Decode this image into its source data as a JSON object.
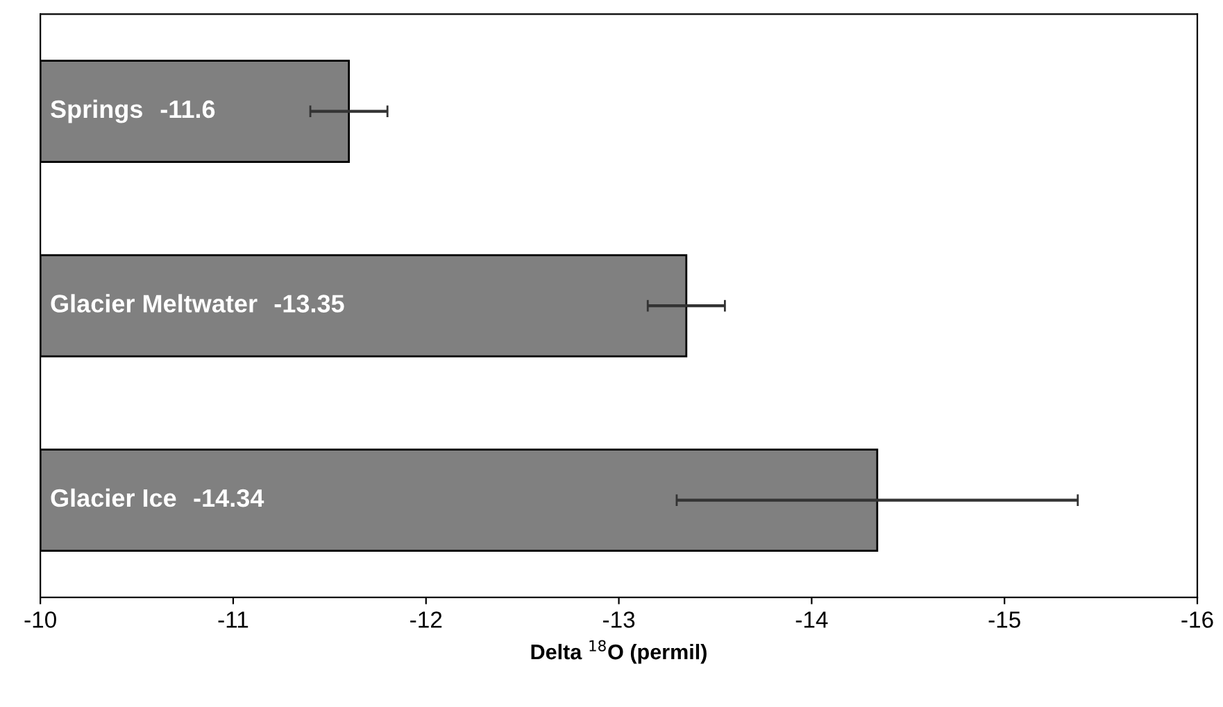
{
  "chart_data": {
    "type": "bar",
    "orientation": "horizontal",
    "xlabel": "Delta $^{18}$O (permil)",
    "categories": [
      "Springs",
      "Glacier Meltwater",
      "Glacier Ice"
    ],
    "values": [
      -11.6,
      -13.35,
      -14.34
    ],
    "errors": [
      0.2,
      0.2,
      1.04
    ],
    "color": "#808080",
    "data_labels": true,
    "xlim": [
      -10,
      -16
    ],
    "xticks": [
      -10,
      -11,
      -12,
      -13,
      -14,
      -15,
      -16
    ],
    "grid": false,
    "legend": false
  }
}
